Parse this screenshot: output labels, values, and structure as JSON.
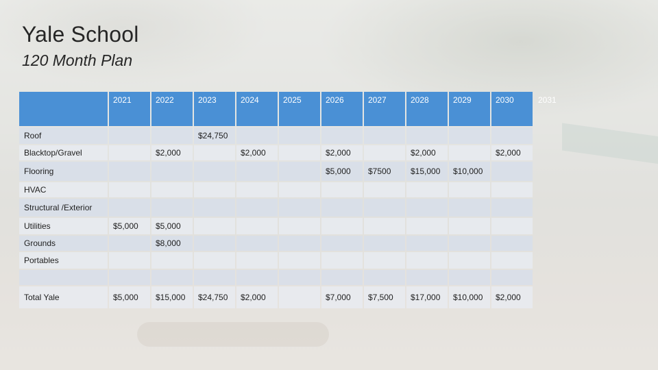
{
  "title": "Yale School",
  "subtitle": "120 Month Plan",
  "years": [
    "2021",
    "2022",
    "2023",
    "2024",
    "2025",
    "2026",
    "2027",
    "2028",
    "2029",
    "2030",
    "2031"
  ],
  "rows": [
    {
      "label": "Roof",
      "cells": [
        "",
        "",
        "$24,750",
        "",
        "",
        "",
        "",
        "",
        "",
        "",
        ""
      ]
    },
    {
      "label": "Blacktop/Gravel",
      "cells": [
        "",
        "$2,000",
        "",
        "$2,000",
        "",
        "$2,000",
        "",
        "$2,000",
        "",
        "$2,000",
        ""
      ]
    },
    {
      "label": "Flooring",
      "cells": [
        "",
        "",
        "",
        "",
        "",
        "$5,000",
        "$7500",
        "$15,000",
        "$10,000",
        "",
        ""
      ]
    },
    {
      "label": "HVAC",
      "cells": [
        "",
        "",
        "",
        "",
        "",
        "",
        "",
        "",
        "",
        "",
        ""
      ]
    },
    {
      "label": "Structural /Exterior",
      "cells": [
        "",
        "",
        "",
        "",
        "",
        "",
        "",
        "",
        "",
        "",
        ""
      ]
    },
    {
      "label": "Utilities",
      "cells": [
        "$5,000",
        "$5,000",
        "",
        "",
        "",
        "",
        "",
        "",
        "",
        "",
        ""
      ]
    },
    {
      "label": "Grounds",
      "cells": [
        "",
        "$8,000",
        "",
        "",
        "",
        "",
        "",
        "",
        "",
        "",
        ""
      ]
    },
    {
      "label": "Portables",
      "cells": [
        "",
        "",
        "",
        "",
        "",
        "",
        "",
        "",
        "",
        "",
        ""
      ]
    },
    {
      "label": "",
      "cells": [
        "",
        "",
        "",
        "",
        "",
        "",
        "",
        "",
        "",
        "",
        ""
      ]
    },
    {
      "label": "Total Yale",
      "cells": [
        "$5,000",
        "$15,000",
        "$24,750",
        "$2,000",
        "",
        "$7,000",
        "$7,500",
        "$17,000",
        "$10,000",
        "$2,000",
        ""
      ]
    }
  ]
}
